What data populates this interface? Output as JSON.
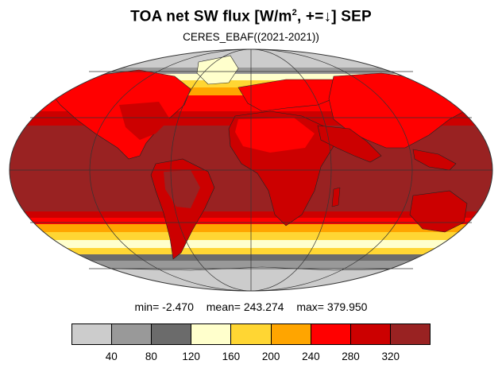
{
  "title": {
    "prefix": "TOA net SW flux [W/m",
    "superscript": "2",
    "suffix": ", +=↓]  SEP"
  },
  "subtitle": "CERES_EBAF((2021-2021))",
  "stats": {
    "min": "min=  -2.470",
    "mean": "mean= 243.274",
    "max": "max= 379.950"
  },
  "colorbar": {
    "colors": [
      "#cccccc",
      "#999999",
      "#6b6b6b",
      "#ffffcc",
      "#ffd633",
      "#ffa500",
      "#ff0000",
      "#cc0000",
      "#992222"
    ],
    "tick_labels": [
      "40",
      "80",
      "120",
      "160",
      "200",
      "240",
      "280",
      "320"
    ]
  },
  "projection": "mollweide",
  "gridlines": "parallels every 30°, meridians every 60°"
}
